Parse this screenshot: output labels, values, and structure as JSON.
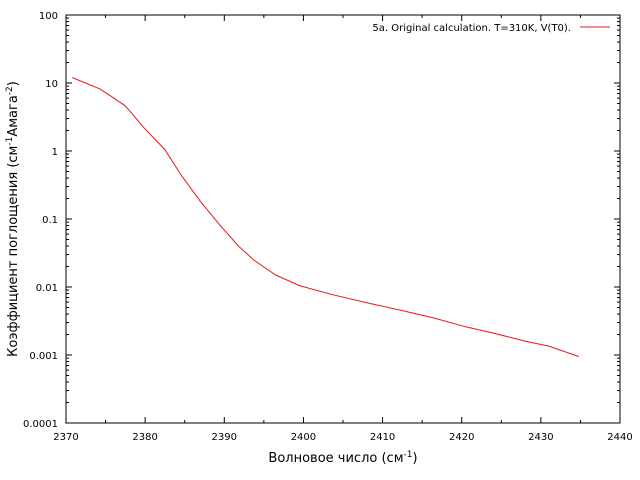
{
  "chart_data": {
    "type": "line",
    "xscale": "linear",
    "yscale": "log",
    "xlim": [
      2370,
      2440
    ],
    "ylim": [
      0.0001,
      100
    ],
    "x_ticks": [
      "2370",
      "2380",
      "2390",
      "2400",
      "2410",
      "2420",
      "2430",
      "2440"
    ],
    "y_ticks": [
      "0.0001",
      "0.001",
      "0.01",
      "0.1",
      "1",
      "10",
      "100"
    ],
    "xlabel": {
      "main": "Волновое число (см",
      "sup": "-1",
      "tail": ")"
    },
    "ylabel": {
      "part1": "Коэффициент поглощения (см",
      "sup1": "-1",
      "part2": "Амага",
      "sup2": "-2",
      "part3": ")"
    },
    "legend_position": "top-right",
    "grid": false,
    "series": [
      {
        "name": "5a. Original calculation. T=310K, V(T0).",
        "color": "#e41a1c",
        "x": [
          2370.8,
          2374.3,
          2377.5,
          2380.0,
          2382.5,
          2384.5,
          2387.0,
          2389.5,
          2391.8,
          2393.7,
          2396.5,
          2399.5,
          2403.5,
          2408.5,
          2412.5,
          2416.5,
          2420.5,
          2424.0,
          2428.0,
          2431.0,
          2434.8
        ],
        "y": [
          12,
          8.2,
          4.6,
          2.1,
          1.05,
          0.45,
          0.18,
          0.08,
          0.04,
          0.025,
          0.015,
          0.0105,
          0.0078,
          0.0057,
          0.0045,
          0.0035,
          0.0026,
          0.0021,
          0.0016,
          0.00135,
          0.00095
        ]
      }
    ]
  }
}
